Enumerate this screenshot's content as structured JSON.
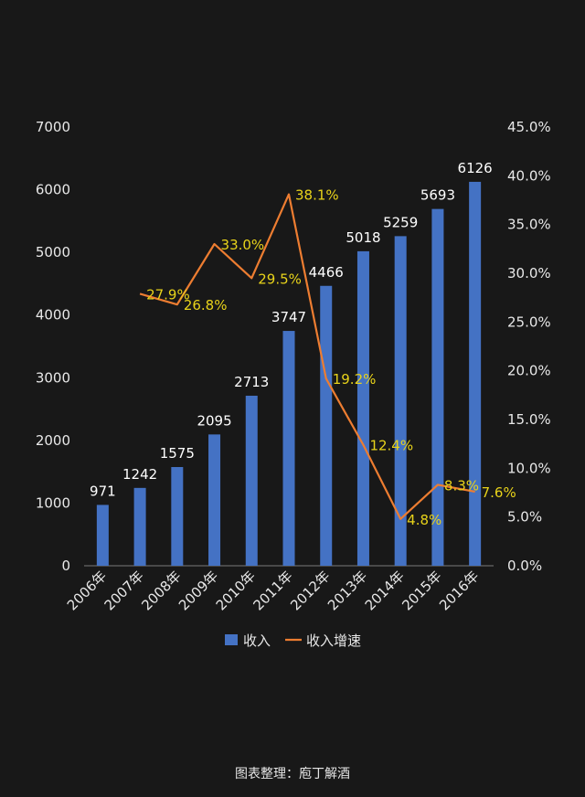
{
  "chart_data": {
    "type": "bar",
    "categories": [
      "2006年",
      "2007年",
      "2008年",
      "2009年",
      "2010年",
      "2011年",
      "2012年",
      "2013年",
      "2014年",
      "2015年",
      "2016年"
    ],
    "series": [
      {
        "name": "收入",
        "type": "bar",
        "axis": "left",
        "values": [
          971,
          1242,
          1575,
          2095,
          2713,
          3747,
          4466,
          5018,
          5259,
          5693,
          6126
        ]
      },
      {
        "name": "收入增速",
        "type": "line",
        "axis": "right",
        "values": [
          null,
          27.9,
          26.8,
          33.0,
          29.5,
          38.1,
          19.2,
          12.4,
          4.8,
          8.3,
          7.6
        ]
      }
    ],
    "y_left": {
      "min": 0,
      "max": 7000,
      "step": 1000,
      "ticks": [
        "0",
        "1000",
        "2000",
        "3000",
        "4000",
        "5000",
        "6000",
        "7000"
      ]
    },
    "y_right": {
      "min": 0,
      "max": 45,
      "step": 5,
      "ticks": [
        "0.0%",
        "5.0%",
        "10.0%",
        "15.0%",
        "20.0%",
        "25.0%",
        "30.0%",
        "35.0%",
        "40.0%",
        "45.0%"
      ]
    },
    "bar_labels": [
      "971",
      "1242",
      "1575",
      "2095",
      "2713",
      "3747",
      "4466",
      "5018",
      "5259",
      "5693",
      "6126"
    ],
    "line_labels": [
      "",
      "27.9%",
      "26.8%",
      "33.0%",
      "29.5%",
      "38.1%",
      "19.2%",
      "12.4%",
      "4.8%",
      "8.3%",
      "7.6%"
    ],
    "legend": [
      "收入",
      "收入增速"
    ],
    "legend_position": "bottom",
    "grid": false
  },
  "colors": {
    "bar": "#4472c4",
    "line": "#ed7d31",
    "rate_label": "#e8d31a",
    "background": "#181818",
    "text": "#e8e8e8"
  },
  "footer": {
    "credit": "图表整理：庖丁解酒"
  }
}
